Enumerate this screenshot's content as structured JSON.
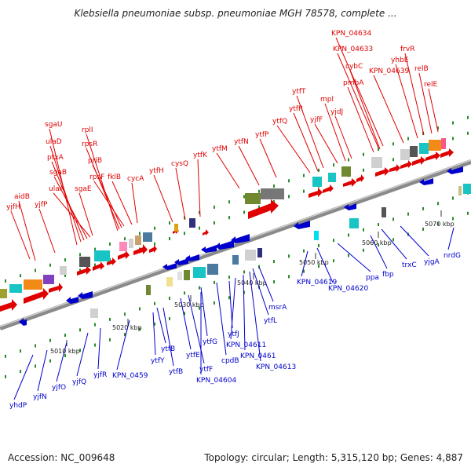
{
  "title": "Klebsiella pneumoniae subsp. pneumoniae MGH 78578, complete ...",
  "footer": {
    "accession": "Accession: NC_009648",
    "summary": "Topology: circular; Length: 5,315,120 bp; Genes: 4,887"
  },
  "colors": {
    "forward": "#e00000",
    "reverse": "#0000cc",
    "backbone": "#8a8a8a",
    "dots": "#2a8a2a"
  },
  "ticks": [
    {
      "label": "5010 kbp"
    },
    {
      "label": "5020 kbp"
    },
    {
      "label": "5030 kbp"
    },
    {
      "label": "5040 kbp"
    },
    {
      "label": "5050 kbp"
    },
    {
      "label": "5060 kbp"
    },
    {
      "label": "5070 kbp"
    }
  ],
  "top_labels": [
    "aidB",
    "yjfH",
    "yjfP",
    "sgaU",
    "ulaD",
    "ptxA",
    "sgaB",
    "ulaA",
    "sgaE",
    "rplI",
    "rpsR",
    "priB",
    "rpsF",
    "fklB",
    "cycA",
    "ytfH",
    "cysQ",
    "ytfK",
    "ytfM",
    "ytfN",
    "ytfP",
    "ytfQ",
    "ytfR",
    "ytfT",
    "yjfF",
    "mpl",
    "yjdJ",
    "pmbA",
    "cybC",
    "KPN_04633",
    "KPN_04634",
    "KPN_04639",
    "yhbE",
    "frvR",
    "relB",
    "relE"
  ],
  "bottom_labels": [
    "yhdP",
    "yjfN",
    "yjfO",
    "yjfQ",
    "yjfR",
    "KPN_04592",
    "ytfY",
    "ytfB",
    "ytfB2",
    "ytfE",
    "ytfF",
    "KPN_04604",
    "ytfG",
    "cpdB",
    "ytfJ",
    "KPN_04611",
    "KPN_04612",
    "KPN_04613",
    "ytfL",
    "msrA",
    "KPN_04619",
    "KPN_04620",
    "ppa",
    "fbp",
    "trxC",
    "yjgA",
    "nrdG"
  ]
}
